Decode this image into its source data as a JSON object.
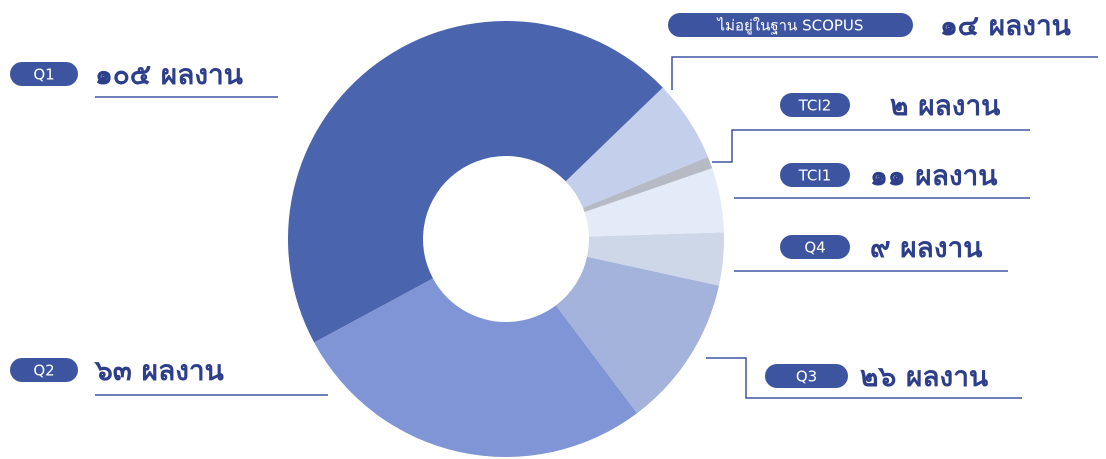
{
  "chart_data": {
    "type": "donut",
    "categories": [
      "Q1",
      "Q2",
      "Q3",
      "Q4",
      "TCI1",
      "TCI2",
      "ไม่อยู่ในฐาน SCOPUS"
    ],
    "values": [
      105,
      63,
      26,
      9,
      11,
      2,
      14
    ],
    "value_labels": [
      "๑๐๕ ผลงาน",
      "๖๓ ผลงาน",
      "๒๖ ผลงาน",
      "๙ ผลงาน",
      "๑๑ ผลงาน",
      "๒ ผลงาน",
      "๑๔ ผลงาน"
    ],
    "colors": [
      "#4a64ae",
      "#7f95d6",
      "#a3b3dc",
      "#cdd7e8",
      "#e3eaf8",
      "#b5bac5",
      "#c3cfeb"
    ]
  }
}
